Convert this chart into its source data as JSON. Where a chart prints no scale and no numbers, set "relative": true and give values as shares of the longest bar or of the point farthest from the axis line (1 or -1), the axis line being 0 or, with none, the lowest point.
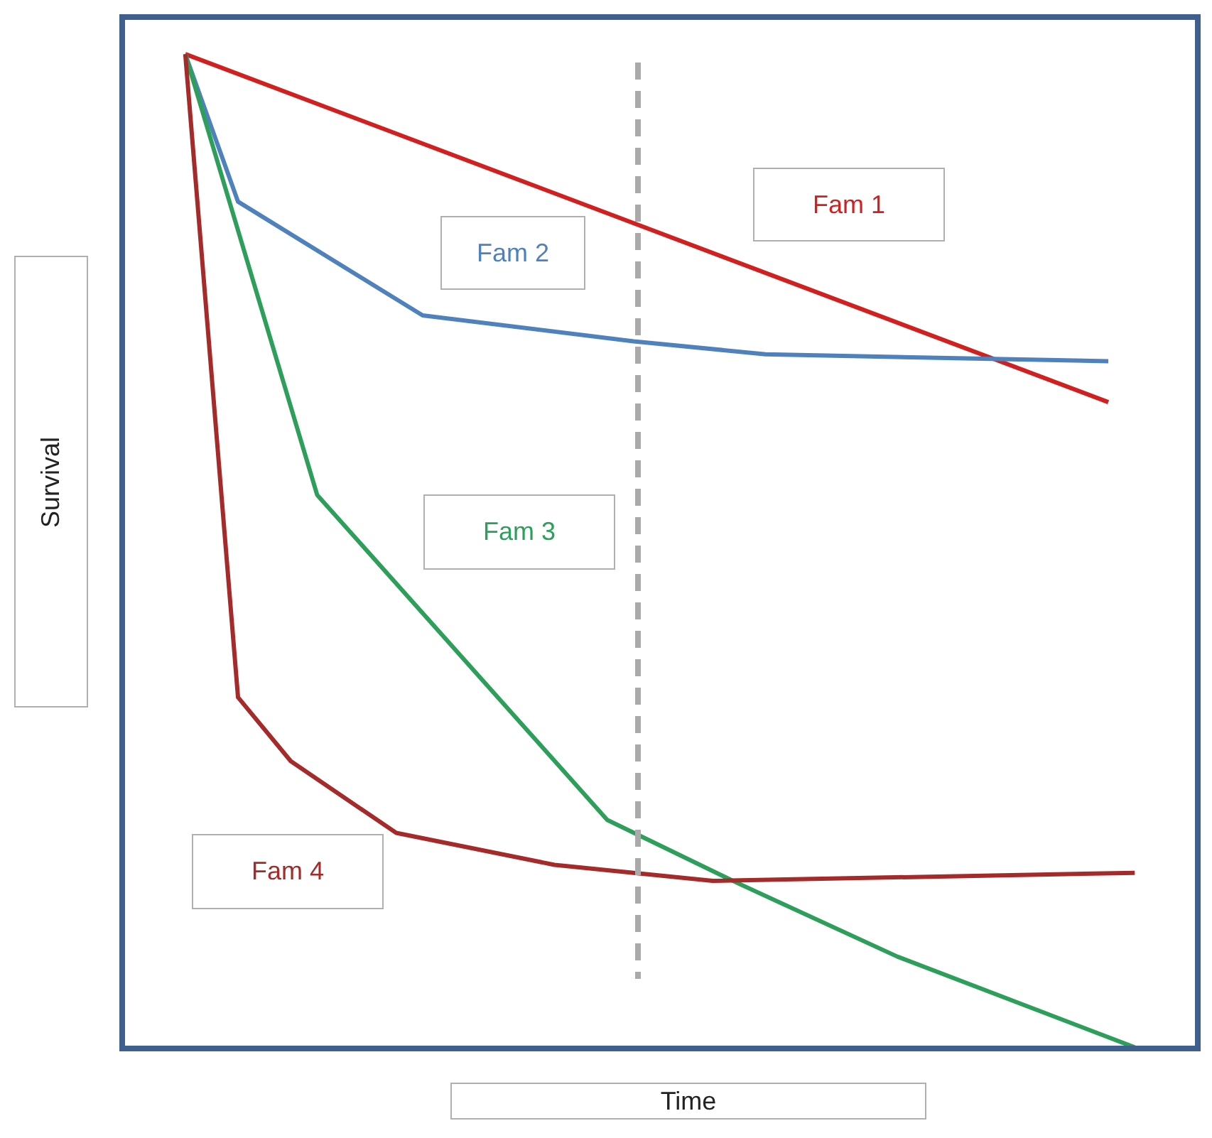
{
  "chart_data": {
    "type": "line",
    "relative": true,
    "xlabel": "Time",
    "ylabel": "Survival",
    "tick_labels": false,
    "marker": "none",
    "line_style": "solid",
    "categories": [
      null,
      null,
      null,
      null,
      null,
      null,
      null,
      null,
      null,
      null,
      null,
      null,
      null,
      null,
      null,
      null,
      null,
      null,
      null,
      null,
      null,
      null,
      null,
      null,
      null,
      null,
      null,
      null,
      null,
      null,
      null,
      null,
      null,
      null,
      null,
      null,
      null,
      null,
      null,
      null,
      null
    ],
    "series": [
      {
        "name": "Fam 1",
        "color": "#d02020",
        "values": [
          null,
          null,
          1,
          null,
          null,
          null,
          null,
          null,
          null,
          null,
          null,
          null,
          null,
          null,
          null,
          null,
          null,
          null,
          null,
          null,
          null,
          null,
          null,
          null,
          null,
          null,
          null,
          null,
          null,
          null,
          null,
          null,
          null,
          null,
          null,
          null,
          null,
          0.651,
          null,
          null,
          null
        ]
      },
      {
        "name": "Fam 2",
        "color": "#4f81bd",
        "values": [
          null,
          null,
          1,
          null,
          0.852,
          null,
          null,
          null,
          null,
          null,
          null,
          0.738,
          null,
          null,
          null,
          null,
          null,
          null,
          null,
          0.712,
          null,
          null,
          null,
          null,
          0.699,
          null,
          null,
          null,
          null,
          null,
          null,
          null,
          null,
          null,
          null,
          null,
          null,
          0.692,
          null,
          null,
          null
        ]
      },
      {
        "name": "Fam 3",
        "color": "#2e9e5b",
        "values": [
          null,
          null,
          1,
          null,
          null,
          null,
          null,
          0.558,
          null,
          null,
          null,
          null,
          null,
          null,
          null,
          null,
          null,
          null,
          0.232,
          null,
          null,
          null,
          null,
          0.168,
          null,
          null,
          null,
          null,
          null,
          0.095,
          null,
          null,
          null,
          null,
          null,
          null,
          null,
          null,
          0.004,
          null,
          null
        ]
      },
      {
        "name": "Fam 4",
        "color": "#a52a2a",
        "values": [
          null,
          null,
          1,
          null,
          0.355,
          null,
          0.291,
          null,
          null,
          null,
          0.219,
          null,
          null,
          null,
          null,
          null,
          0.187,
          null,
          null,
          null,
          null,
          null,
          0.171,
          null,
          null,
          null,
          null,
          null,
          null,
          null,
          null,
          null,
          null,
          null,
          null,
          null,
          null,
          null,
          0.179,
          null,
          null
        ]
      }
    ],
    "ref_lines": [
      {
        "axis": "x",
        "color": "#aaaaaa",
        "line_style": "dashed"
      }
    ]
  }
}
